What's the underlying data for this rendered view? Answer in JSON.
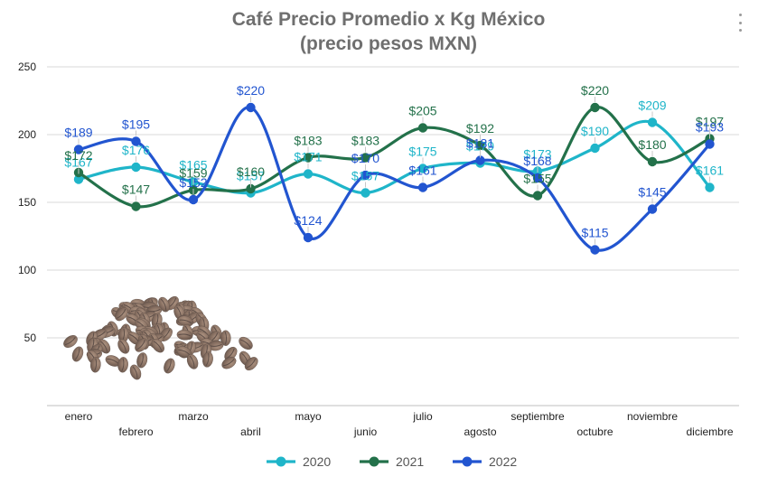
{
  "menu": {
    "icon": "more-vertical-icon"
  },
  "chart_data": {
    "type": "line",
    "title": "Café Precio Promedio x Kg México",
    "subtitle": "(precio pesos MXN)",
    "categories": [
      "enero",
      "febrero",
      "marzo",
      "abril",
      "mayo",
      "junio",
      "julio",
      "agosto",
      "septiembre",
      "octubre",
      "noviembre",
      "diciembre"
    ],
    "ylim": [
      0,
      250
    ],
    "yticks": [
      50,
      100,
      150,
      200,
      250
    ],
    "grid": true,
    "legend_position": "bottom",
    "value_prefix": "$",
    "series": [
      {
        "name": "2020",
        "color": "#1fb5c9",
        "values": [
          167,
          176,
          165,
          157,
          171,
          157,
          175,
          179,
          173,
          190,
          209,
          161
        ]
      },
      {
        "name": "2021",
        "color": "#23714a",
        "values": [
          172,
          147,
          159,
          160,
          183,
          183,
          205,
          192,
          155,
          220,
          180,
          197
        ]
      },
      {
        "name": "2022",
        "color": "#2255d0",
        "values": [
          189,
          195,
          152,
          220,
          124,
          170,
          161,
          181,
          168,
          115,
          145,
          193
        ]
      }
    ]
  },
  "decoration": {
    "image": "coffee-beans-pile"
  }
}
